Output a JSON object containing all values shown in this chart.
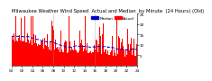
{
  "title": "Milwaukee Weather Wind Speed  Actual and Median  by Minute  (24 Hours) (Old)",
  "n_points": 1440,
  "seed": 42,
  "bar_color": "#ff0000",
  "line_color": "#0000cc",
  "background_color": "#ffffff",
  "vline_positions": [
    480,
    960
  ],
  "vline_color": "#999999",
  "ylim": [
    0,
    25
  ],
  "ytick_values": [
    5,
    10,
    15,
    20,
    25
  ],
  "ytick_labels": [
    "5",
    "10",
    "15",
    "20",
    "25"
  ],
  "legend_actual": "Actual",
  "legend_median": "Median",
  "title_fontsize": 3.8,
  "tick_fontsize": 3.0
}
